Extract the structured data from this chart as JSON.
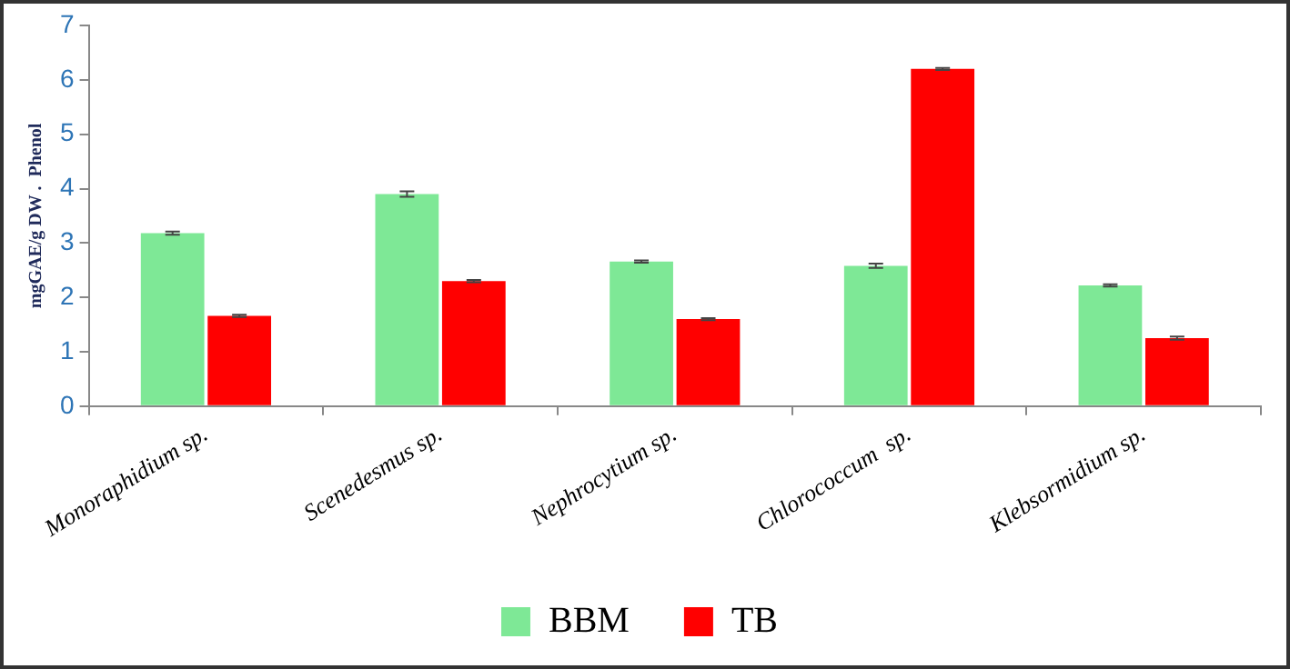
{
  "chart_data": {
    "type": "bar",
    "ylabel": "mgGAE/g DW .  Phenol",
    "categories": [
      "Monoraphidium sp.",
      "Scenedesmus sp.",
      "Nephrocytium sp.",
      "Chlorococcum  sp.",
      "Klebsormidium sp."
    ],
    "series": [
      {
        "name": "BBM",
        "color": "#7ee896",
        "values": [
          3.18,
          3.9,
          2.66,
          2.58,
          2.22
        ],
        "errors": [
          0.03,
          0.05,
          0.02,
          0.04,
          0.02
        ]
      },
      {
        "name": "TB",
        "color": "#ff0000",
        "values": [
          1.66,
          2.3,
          1.6,
          6.2,
          1.25
        ],
        "errors": [
          0.02,
          0.02,
          0.02,
          0.02,
          0.03
        ]
      }
    ],
    "ylim": [
      0,
      7
    ],
    "yticks": [
      0,
      1,
      2,
      3,
      4,
      5,
      6,
      7
    ],
    "grid": false,
    "legend": "bottom"
  }
}
